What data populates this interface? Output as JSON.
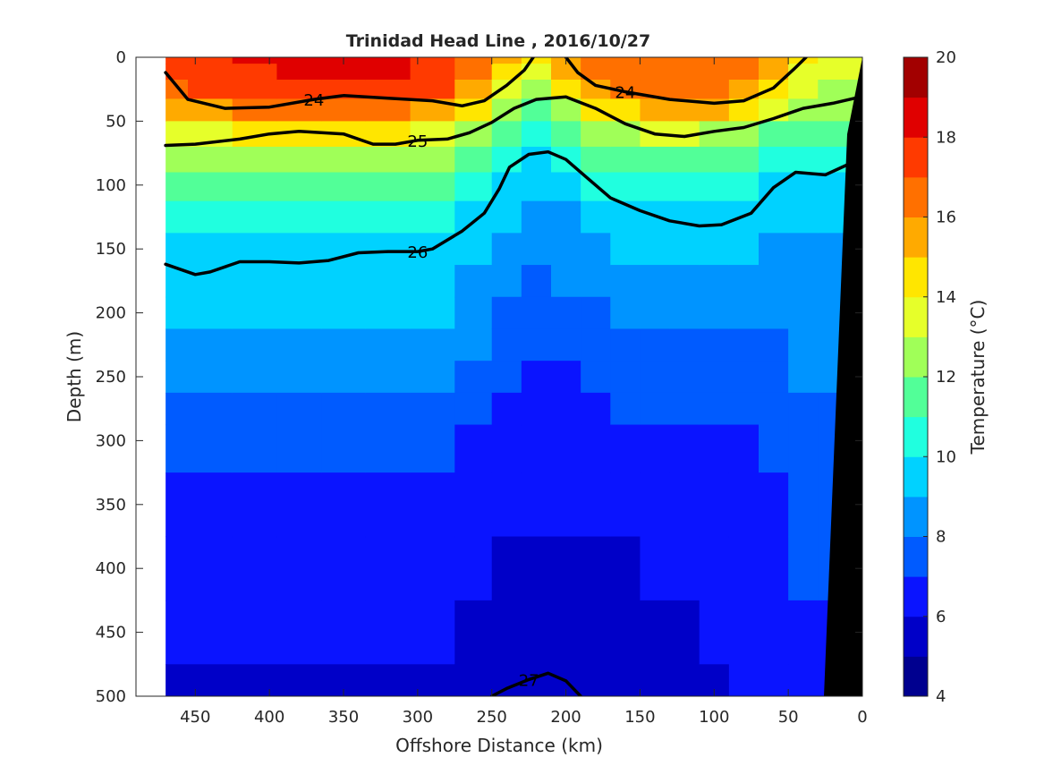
{
  "chart_data": {
    "type": "heatmap",
    "title": "Trinidad Head Line , 2016/10/27",
    "xlabel": "Offshore Distance (km)",
    "ylabel": "Depth (m)",
    "colorbar_label": "Temperature (°C)",
    "x_axis": {
      "range": [
        490,
        0
      ],
      "reversed": true,
      "ticks": [
        "450",
        "400",
        "350",
        "300",
        "250",
        "200",
        "150",
        "100",
        "50",
        "0"
      ]
    },
    "y_axis": {
      "range": [
        0,
        500
      ],
      "reversed": true,
      "ticks": [
        "0",
        "50",
        "100",
        "150",
        "200",
        "250",
        "300",
        "350",
        "400",
        "450",
        "500"
      ]
    },
    "colorbar": {
      "range": [
        4,
        20
      ],
      "ticks": [
        "4",
        "6",
        "8",
        "10",
        "12",
        "14",
        "16",
        "18",
        "20"
      ],
      "colors": [
        "#00008f",
        "#0000c8",
        "#0a14ff",
        "#005bff",
        "#0094ff",
        "#00d2ff",
        "#20ffdf",
        "#52ff98",
        "#a0ff58",
        "#e6ff2a",
        "#ffe600",
        "#ffaa00",
        "#ff7000",
        "#ff3a00",
        "#e00000",
        "#a20000"
      ]
    },
    "temperature_field": {
      "distance_km": [
        470,
        440,
        410,
        380,
        350,
        320,
        290,
        260,
        240,
        220,
        200,
        180,
        160,
        140,
        120,
        100,
        80,
        60,
        40,
        20
      ],
      "depth_m": [
        0,
        10,
        25,
        40,
        60,
        80,
        100,
        125,
        150,
        175,
        200,
        225,
        250,
        275,
        300,
        350,
        400,
        450,
        500
      ],
      "profiles": [
        [
          17.5,
          17.3,
          16.8,
          15.8,
          13.6,
          12.3,
          11.2,
          10.4,
          9.7,
          9.4,
          9.1,
          8.6,
          8.2,
          7.9,
          7.4,
          6.9,
          6.3,
          6.0,
          5.9
        ],
        [
          17.8,
          17.6,
          17.0,
          15.9,
          13.8,
          12.5,
          11.3,
          10.5,
          9.8,
          9.4,
          9.1,
          8.6,
          8.2,
          7.9,
          7.4,
          6.9,
          6.3,
          6.0,
          5.9
        ],
        [
          18.0,
          17.8,
          17.2,
          16.1,
          14.0,
          12.7,
          11.6,
          10.6,
          9.8,
          9.4,
          9.1,
          8.7,
          8.3,
          7.9,
          7.4,
          6.9,
          6.3,
          6.0,
          5.9
        ],
        [
          18.2,
          18.0,
          17.4,
          16.4,
          14.3,
          12.8,
          11.6,
          10.5,
          9.7,
          9.2,
          9.1,
          8.7,
          8.3,
          7.9,
          7.4,
          6.9,
          6.3,
          6.0,
          5.9
        ],
        [
          18.5,
          18.3,
          17.7,
          16.6,
          14.4,
          12.6,
          11.4,
          10.4,
          9.6,
          9.3,
          9.1,
          8.7,
          8.2,
          7.9,
          7.4,
          6.9,
          6.3,
          6.0,
          5.9
        ],
        [
          18.3,
          18.1,
          17.5,
          16.5,
          14.2,
          12.4,
          11.3,
          10.4,
          9.7,
          9.4,
          9.1,
          8.6,
          8.2,
          7.9,
          7.4,
          6.9,
          6.3,
          6.0,
          5.9
        ],
        [
          17.8,
          17.6,
          17.0,
          15.8,
          13.9,
          12.3,
          11.1,
          10.2,
          9.6,
          9.3,
          9.0,
          8.5,
          8.2,
          7.8,
          7.3,
          6.8,
          6.2,
          6.0,
          5.9
        ],
        [
          16.5,
          16.2,
          15.5,
          14.0,
          12.5,
          11.2,
          10.2,
          9.5,
          9.1,
          8.8,
          8.4,
          8.0,
          7.6,
          7.2,
          6.9,
          6.5,
          6.0,
          5.7,
          5.5
        ],
        [
          15.0,
          14.5,
          13.5,
          12.2,
          11.2,
          10.3,
          9.5,
          9.0,
          8.6,
          8.2,
          7.8,
          7.4,
          7.1,
          6.8,
          6.5,
          6.1,
          5.8,
          5.4,
          5.2
        ],
        [
          14.2,
          13.6,
          12.6,
          11.5,
          10.4,
          9.7,
          9.2,
          8.8,
          8.4,
          7.9,
          7.5,
          7.1,
          6.8,
          6.5,
          6.3,
          6.0,
          5.7,
          5.3,
          5.1
        ],
        [
          15.5,
          15.0,
          14.0,
          12.6,
          11.2,
          10.2,
          9.4,
          8.9,
          8.5,
          8.0,
          7.6,
          7.2,
          6.9,
          6.6,
          6.3,
          6.0,
          5.7,
          5.4,
          5.2
        ],
        [
          16.5,
          16.3,
          15.6,
          14.0,
          12.3,
          11.0,
          10.0,
          9.3,
          8.8,
          8.4,
          7.9,
          7.5,
          7.1,
          6.8,
          6.5,
          6.1,
          5.8,
          5.6,
          5.5
        ],
        [
          16.8,
          16.6,
          16.0,
          14.8,
          12.8,
          11.5,
          10.4,
          9.6,
          9.0,
          8.6,
          8.1,
          7.7,
          7.3,
          7.0,
          6.7,
          6.2,
          5.9,
          5.7,
          5.6
        ],
        [
          16.8,
          16.7,
          16.2,
          15.2,
          13.0,
          11.7,
          10.7,
          9.8,
          9.1,
          8.7,
          8.3,
          7.8,
          7.4,
          7.1,
          6.8,
          6.3,
          6.0,
          5.8,
          5.7
        ],
        [
          16.9,
          16.7,
          16.2,
          15.2,
          13.0,
          11.7,
          10.8,
          9.9,
          9.2,
          8.8,
          8.4,
          7.9,
          7.5,
          7.2,
          6.9,
          6.4,
          6.1,
          5.9,
          5.8
        ],
        [
          16.8,
          16.6,
          16.1,
          15.0,
          12.9,
          11.6,
          10.6,
          9.8,
          9.1,
          8.8,
          8.4,
          7.9,
          7.5,
          7.2,
          6.9,
          6.5,
          6.2,
          6.0,
          5.9
        ],
        [
          16.5,
          16.2,
          15.6,
          14.4,
          12.6,
          11.3,
          10.3,
          9.5,
          9.0,
          8.7,
          8.3,
          7.9,
          7.5,
          7.2,
          6.9,
          6.5,
          6.3,
          6.1,
          6.0
        ],
        [
          15.5,
          15.0,
          14.2,
          13.0,
          11.9,
          10.8,
          9.8,
          9.2,
          8.8,
          8.5,
          8.2,
          7.9,
          7.6,
          7.3,
          7.0,
          6.7,
          6.4,
          6.2,
          6.1
        ],
        [
          14.2,
          13.8,
          13.0,
          12.2,
          11.3,
          10.5,
          9.7,
          9.2,
          8.9,
          8.6,
          8.4,
          8.2,
          8.0,
          7.9,
          7.6,
          7.2,
          7.0,
          6.8,
          6.7
        ],
        [
          13.8,
          13.5,
          12.9,
          12.2,
          11.3,
          10.6,
          9.8,
          9.2,
          8.9,
          8.7,
          8.5,
          8.3,
          8.1,
          7.9,
          7.6,
          7.2,
          7.0,
          6.8,
          6.7
        ]
      ]
    },
    "density_contours": [
      {
        "label": "24",
        "points": [
          [
            470,
            12
          ],
          [
            455,
            33
          ],
          [
            430,
            40
          ],
          [
            400,
            39
          ],
          [
            370,
            33
          ],
          [
            350,
            30
          ],
          [
            320,
            32
          ],
          [
            290,
            34
          ],
          [
            270,
            38
          ],
          [
            255,
            34
          ],
          [
            240,
            22
          ],
          [
            228,
            10
          ],
          [
            222,
            0
          ]
        ]
      },
      {
        "label": "24",
        "points": [
          [
            200,
            0
          ],
          [
            192,
            12
          ],
          [
            180,
            22
          ],
          [
            160,
            27
          ],
          [
            130,
            33
          ],
          [
            100,
            36
          ],
          [
            80,
            34
          ],
          [
            60,
            24
          ],
          [
            45,
            8
          ],
          [
            38,
            0
          ]
        ]
      },
      {
        "label": "25",
        "points": [
          [
            470,
            69
          ],
          [
            450,
            68
          ],
          [
            420,
            64
          ],
          [
            400,
            60
          ],
          [
            380,
            58
          ],
          [
            350,
            60
          ],
          [
            330,
            68
          ],
          [
            315,
            68
          ],
          [
            300,
            65
          ],
          [
            280,
            64
          ],
          [
            265,
            59
          ],
          [
            250,
            51
          ],
          [
            235,
            40
          ],
          [
            220,
            33
          ],
          [
            200,
            31
          ],
          [
            180,
            40
          ],
          [
            160,
            52
          ],
          [
            140,
            60
          ],
          [
            120,
            62
          ],
          [
            100,
            58
          ],
          [
            80,
            55
          ],
          [
            60,
            48
          ],
          [
            40,
            40
          ],
          [
            20,
            36
          ],
          [
            5,
            32
          ]
        ]
      },
      {
        "label": "26",
        "points": [
          [
            470,
            162
          ],
          [
            450,
            170
          ],
          [
            440,
            168
          ],
          [
            420,
            160
          ],
          [
            400,
            160
          ],
          [
            380,
            161
          ],
          [
            360,
            159
          ],
          [
            340,
            153
          ],
          [
            320,
            152
          ],
          [
            300,
            152
          ],
          [
            290,
            150
          ],
          [
            270,
            136
          ],
          [
            255,
            122
          ],
          [
            245,
            103
          ],
          [
            238,
            86
          ],
          [
            225,
            76
          ],
          [
            212,
            74
          ],
          [
            200,
            80
          ],
          [
            185,
            95
          ],
          [
            170,
            110
          ],
          [
            150,
            120
          ],
          [
            130,
            128
          ],
          [
            110,
            132
          ],
          [
            95,
            131
          ],
          [
            75,
            122
          ],
          [
            60,
            102
          ],
          [
            45,
            90
          ],
          [
            25,
            92
          ],
          [
            10,
            84
          ]
        ]
      },
      {
        "label": "27",
        "points": [
          [
            250,
            500
          ],
          [
            240,
            494
          ],
          [
            225,
            487
          ],
          [
            212,
            482
          ],
          [
            200,
            488
          ],
          [
            190,
            500
          ]
        ]
      }
    ]
  }
}
